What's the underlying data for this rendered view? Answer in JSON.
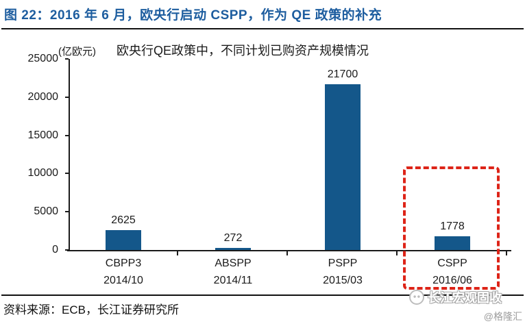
{
  "header": {
    "title": "图 22：2016 年 6 月，欧央行启动 CSPP，作为 QE 政策的补充"
  },
  "chart_data": {
    "type": "bar",
    "title": "欧央行QE政策中，不同计划已购资产规模情况",
    "unit_label": "(亿欧元)",
    "categories": [
      "CBPP3",
      "ABSPP",
      "PSPP",
      "CSPP"
    ],
    "category_dates": [
      "2014/10",
      "2014/11",
      "2015/03",
      "2016/06"
    ],
    "values": [
      2625,
      272,
      21700,
      1778
    ],
    "ylim": [
      0,
      25000
    ],
    "yticks": [
      0,
      5000,
      10000,
      15000,
      20000,
      25000
    ],
    "grid": false,
    "legend": "none",
    "bar_color": "#14578a",
    "highlight": {
      "category": "CSPP",
      "style": "dashed-box",
      "color": "#dd2418"
    }
  },
  "footer": {
    "source": "资料来源：ECB，长江证券研究所",
    "watermark_title": "长江宏观固收",
    "watermark_handle": "@格隆汇"
  },
  "colors": {
    "title": "#1d5d9f",
    "bar": "#14578a",
    "highlight": "#dd2418",
    "rule": "#111111"
  }
}
